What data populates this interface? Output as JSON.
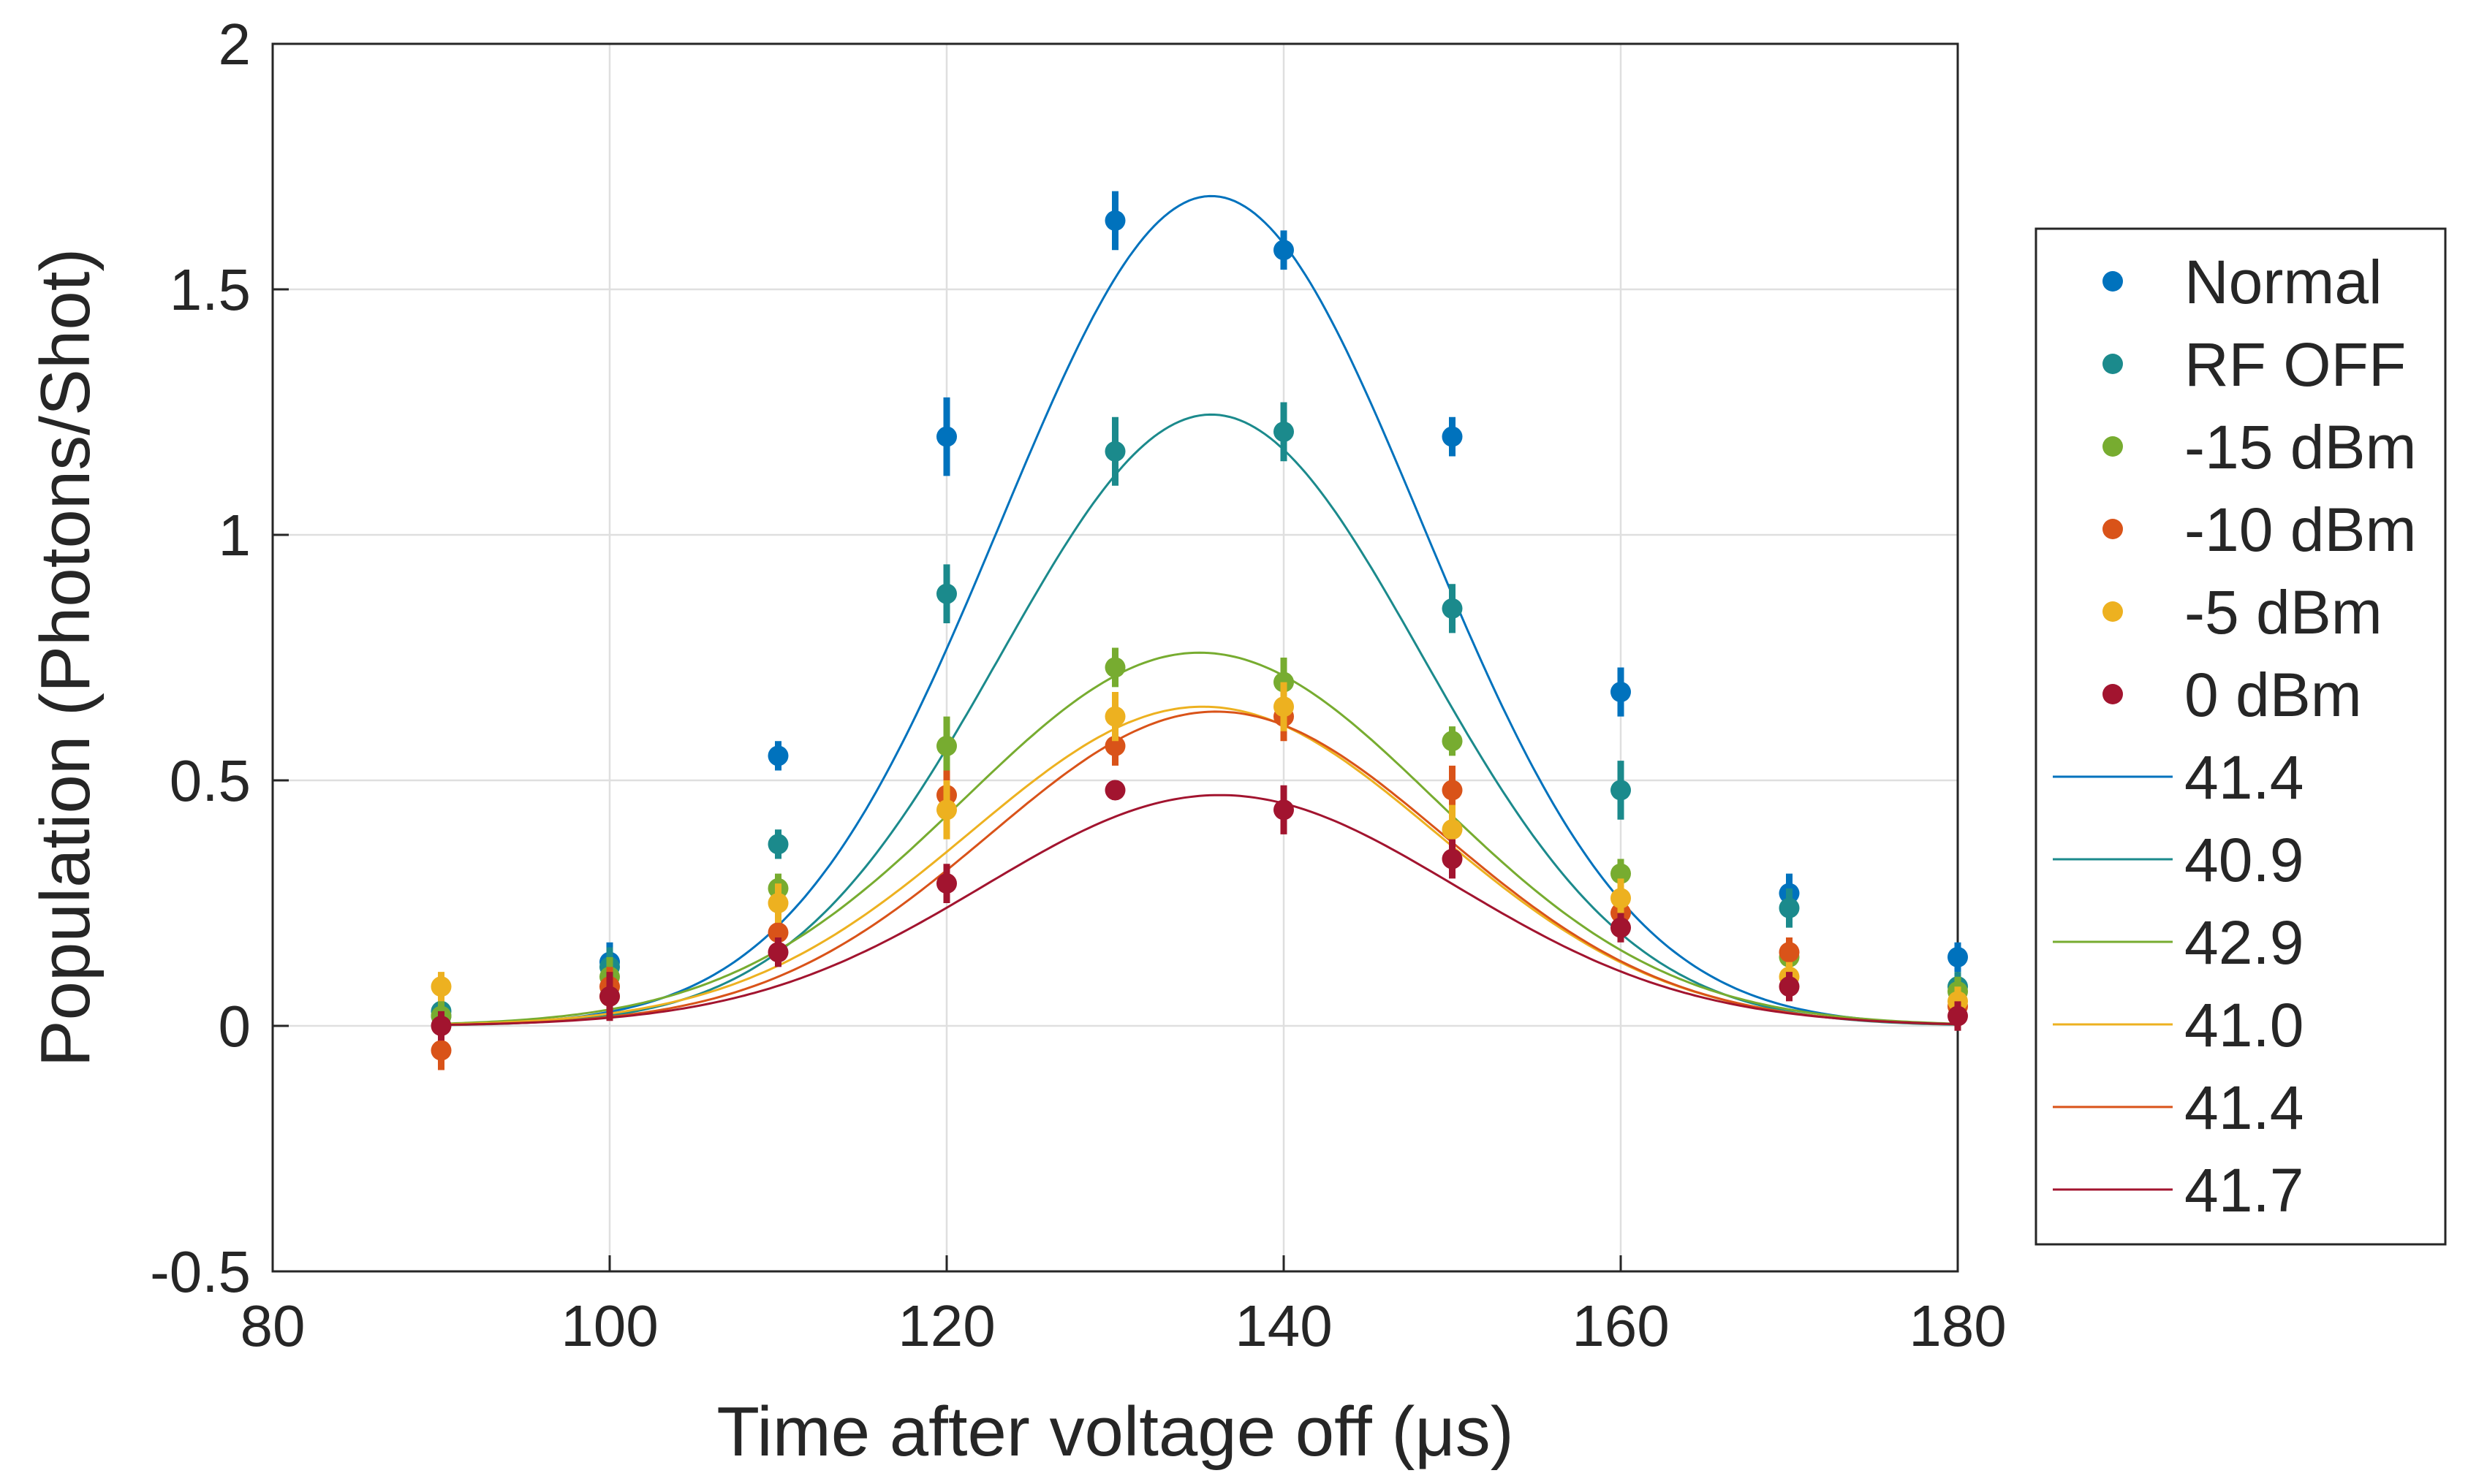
{
  "chart_data": {
    "type": "scatter",
    "title": "",
    "xlabel": "Time after voltage off (μs)",
    "ylabel": "Population (Photons/Shot)",
    "xlim": [
      80,
      180
    ],
    "ylim": [
      -0.5,
      2
    ],
    "xticks": [
      80,
      100,
      120,
      140,
      160,
      180
    ],
    "xtick_labels": [
      "80",
      "100",
      "120",
      "140",
      "160",
      "180"
    ],
    "yticks": [
      -0.5,
      0,
      0.5,
      1,
      1.5,
      2
    ],
    "ytick_labels": [
      "-0.5",
      "0",
      "0.5",
      "1",
      "1.5",
      "2"
    ],
    "grid": true,
    "legend_position": "outside-right",
    "x": [
      90,
      100,
      110,
      120,
      130,
      140,
      150,
      160,
      170,
      180
    ],
    "series": [
      {
        "name": "Normal",
        "color": "#0072BD",
        "y": [
          0.02,
          0.13,
          0.55,
          1.2,
          1.64,
          1.58,
          1.2,
          0.68,
          0.27,
          0.14
        ],
        "err": [
          0.03,
          0.04,
          0.03,
          0.08,
          0.06,
          0.04,
          0.04,
          0.05,
          0.04,
          0.03
        ]
      },
      {
        "name": "RF OFF",
        "color": "#1B8A8C",
        "y": [
          0.03,
          0.12,
          0.37,
          0.88,
          1.17,
          1.21,
          0.85,
          0.48,
          0.24,
          0.08
        ],
        "err": [
          0.03,
          0.04,
          0.03,
          0.06,
          0.07,
          0.06,
          0.05,
          0.06,
          0.04,
          0.03
        ]
      },
      {
        "name": "-15 dBm",
        "color": "#77AC30",
        "y": [
          0.02,
          0.1,
          0.28,
          0.57,
          0.73,
          0.7,
          0.58,
          0.31,
          0.14,
          0.07
        ],
        "err": [
          0.03,
          0.04,
          0.03,
          0.06,
          0.04,
          0.05,
          0.03,
          0.03,
          0.03,
          0.03
        ]
      },
      {
        "name": "-10 dBm",
        "color": "#D95319",
        "y": [
          -0.05,
          0.08,
          0.19,
          0.47,
          0.57,
          0.63,
          0.48,
          0.23,
          0.15,
          0.04
        ],
        "err": [
          0.04,
          0.04,
          0.04,
          0.05,
          0.04,
          0.05,
          0.05,
          0.04,
          0.03,
          0.03
        ]
      },
      {
        "name": "-5 dBm",
        "color": "#EDB120",
        "y": [
          0.08,
          0.06,
          0.25,
          0.44,
          0.63,
          0.65,
          0.4,
          0.26,
          0.1,
          0.05
        ],
        "err": [
          0.03,
          0.04,
          0.04,
          0.06,
          0.05,
          0.05,
          0.05,
          0.04,
          0.03,
          0.03
        ]
      },
      {
        "name": "0 dBm",
        "color": "#A2142F",
        "y": [
          0.0,
          0.06,
          0.15,
          0.29,
          0.48,
          0.44,
          0.34,
          0.2,
          0.08,
          0.02
        ],
        "err": [
          0.03,
          0.05,
          0.03,
          0.04,
          0.02,
          0.05,
          0.04,
          0.03,
          0.03,
          0.03
        ]
      }
    ],
    "fits": [
      {
        "name": "41.4",
        "color": "#0072BD",
        "amplitude": 1.69,
        "center": 135.7,
        "sigma": 12.5
      },
      {
        "name": "40.9",
        "color": "#1B8A8C",
        "amplitude": 1.245,
        "center": 135.7,
        "sigma": 12.5
      },
      {
        "name": "42.9",
        "color": "#77AC30",
        "amplitude": 0.76,
        "center": 135.0,
        "sigma": 14.0
      },
      {
        "name": "41.0",
        "color": "#EDB120",
        "amplitude": 0.65,
        "center": 135.2,
        "sigma": 13.8
      },
      {
        "name": "41.4",
        "color": "#D95319",
        "amplitude": 0.64,
        "center": 136.0,
        "sigma": 13.5
      },
      {
        "name": "41.7",
        "color": "#A2142F",
        "amplitude": 0.47,
        "center": 136.2,
        "sigma": 14.0
      }
    ]
  }
}
